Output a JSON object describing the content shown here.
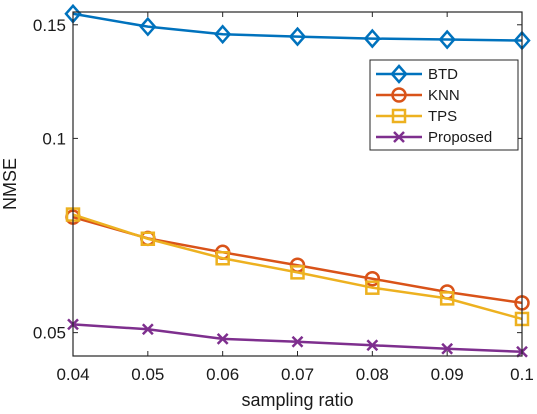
{
  "chart_data": {
    "type": "line",
    "xlabel": "sampling ratio",
    "ylabel": "NMSE",
    "xlim": [
      0.04,
      0.1
    ],
    "ylim": [
      0.046,
      0.157
    ],
    "yscale": "log",
    "x": [
      0.04,
      0.05,
      0.06,
      0.07,
      0.08,
      0.09,
      0.1
    ],
    "x_tick_labels": [
      "0.04",
      "0.05",
      "0.06",
      "0.07",
      "0.08",
      "0.09",
      "0.1"
    ],
    "y_ticks": [
      0.05,
      0.1,
      0.15
    ],
    "y_tick_labels": [
      "0.05",
      "0.1",
      "0.15"
    ],
    "grid": false,
    "legend_position": "top-right",
    "series": [
      {
        "name": "BTD",
        "color": "#0072BD",
        "marker": "diamond",
        "values": [
          0.156,
          0.149,
          0.145,
          0.1438,
          0.1428,
          0.1423,
          0.1418
        ]
      },
      {
        "name": "KNN",
        "color": "#D95319",
        "marker": "circle",
        "values": [
          0.0755,
          0.07,
          0.0666,
          0.0636,
          0.0606,
          0.0578,
          0.0556
        ]
      },
      {
        "name": "TPS",
        "color": "#EDB120",
        "marker": "square",
        "values": [
          0.0762,
          0.0699,
          0.0652,
          0.062,
          0.0587,
          0.0565,
          0.0525
        ]
      },
      {
        "name": "Proposed",
        "color": "#7E2F8E",
        "marker": "x",
        "values": [
          0.0515,
          0.0506,
          0.0489,
          0.0484,
          0.0478,
          0.0472,
          0.0467
        ]
      }
    ]
  }
}
